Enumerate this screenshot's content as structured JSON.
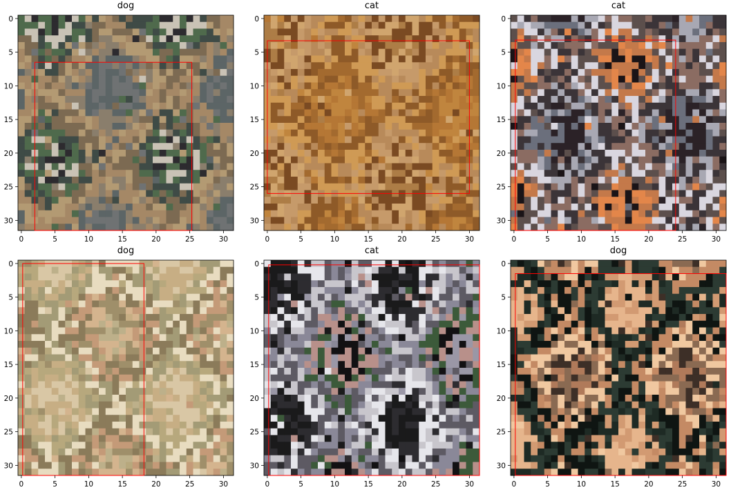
{
  "panels": [
    {
      "title": "dog",
      "box": [
        2,
        6.5,
        25.3,
        31.5
      ],
      "palette": [
        "#6f7273",
        "#5c6566",
        "#8a7e6c",
        "#a58866",
        "#b39a73",
        "#7c6a52",
        "#3f4b46",
        "#4f6a4c",
        "#c9c2b5",
        "#2d2b2f"
      ]
    },
    {
      "title": "cat",
      "box": [
        0,
        3.3,
        30,
        26
      ],
      "palette": [
        "#c0853e",
        "#b57735",
        "#a36a2f",
        "#8e5a28",
        "#cf9a55",
        "#b88a5a",
        "#c69a6a",
        "#7a4a22",
        "#d0a56e",
        "#ad7d46"
      ]
    },
    {
      "title": "cat",
      "box": [
        0.2,
        3.2,
        24,
        31.5
      ],
      "palette": [
        "#2b2227",
        "#6b6f7c",
        "#a8a8b3",
        "#3b3438",
        "#8b6c62",
        "#d9d6df",
        "#5c4f4c",
        "#c4794a",
        "#e3864a",
        "#1a1417"
      ]
    },
    {
      "title": "dog",
      "box": [
        0.2,
        0,
        18.2,
        31.5
      ],
      "palette": [
        "#d9c7a5",
        "#c7ae84",
        "#b7a87d",
        "#a39b76",
        "#e8dcc0",
        "#8b7b5a",
        "#c49a78",
        "#9f8f6a",
        "#d4b48e",
        "#bdb08a"
      ]
    },
    {
      "title": "cat",
      "box": [
        0.2,
        0.2,
        31.5,
        31.5
      ],
      "palette": [
        "#1a1a1b",
        "#2d2c30",
        "#e6e6eb",
        "#c8c6cc",
        "#5d5a63",
        "#8a8898",
        "#3c5a3a",
        "#b8908a",
        "#121113",
        "#9a97a6"
      ]
    },
    {
      "title": "dog",
      "box": [
        0.2,
        1.5,
        31.5,
        31.5
      ],
      "palette": [
        "#e6b58c",
        "#d29a72",
        "#1e2a24",
        "#2c3b33",
        "#0f1512",
        "#c48a64",
        "#f0c8a0",
        "#8a6a52",
        "#3d2f27",
        "#b07a5a"
      ]
    }
  ],
  "axis": {
    "ticks": [
      "0",
      "5",
      "10",
      "15",
      "20",
      "25",
      "30"
    ],
    "box_color": "#ff0000"
  }
}
